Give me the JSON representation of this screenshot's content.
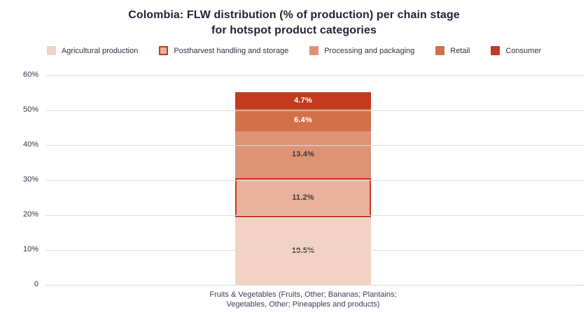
{
  "title": {
    "line1": "Colombia: FLW distribution (% of production) per chain stage",
    "line2": "for hotspot product categories"
  },
  "colors": {
    "agricultural_production": "#f2d2c4",
    "postharvest_fill": "#e9b19e",
    "postharvest_border": "#c53a1e",
    "processing_and_packaging": "#de9377",
    "retail": "#d1714a",
    "consumer": "#c33a20",
    "gridline": "#e0ded8",
    "title_text": "#1f2233",
    "tick_text": "#333447",
    "dark_value_label": "#3f3a36",
    "light_value_label": "#ffffff"
  },
  "chart_data": {
    "type": "bar",
    "stacked": true,
    "title": "Colombia: FLW distribution (% of production) per chain stage for hotspot product categories",
    "xlabel": "",
    "ylabel": "",
    "ylim": [
      0,
      60
    ],
    "grid": true,
    "legend_position": "top",
    "categories": [
      "Fruits & Vegetables (Fruits, Other; Bananas; Plantains; Vegetables, Other; Pineapples and products)"
    ],
    "category_label_lines": [
      "Fruits & Vegetables (Fruits, Other; Bananas; Plantains;",
      "Vegetables, Other; Pineapples and products)"
    ],
    "series": [
      {
        "name": "Agricultural production",
        "values": [
          19.5
        ],
        "display_label": "19.5%",
        "fill": "#f2d2c4",
        "border": null,
        "label_color": "#3f3a36"
      },
      {
        "name": "Postharvest handling and storage",
        "values": [
          11.2
        ],
        "display_label": "11.2%",
        "fill": "#e9b19e",
        "border": "#c53a1e",
        "label_color": "#3f3a36"
      },
      {
        "name": "Processing and packaging",
        "values": [
          13.4
        ],
        "display_label": "13.4%",
        "fill": "#de9377",
        "border": null,
        "label_color": "#3f3a36"
      },
      {
        "name": "Retail",
        "values": [
          6.4
        ],
        "display_label": "6.4%",
        "fill": "#d1714a",
        "border": null,
        "label_color": "#ffffff"
      },
      {
        "name": "Consumer",
        "values": [
          4.7
        ],
        "display_label": "4.7%",
        "fill": "#c33a20",
        "border": null,
        "label_color": "#ffffff"
      }
    ],
    "total_label": null,
    "yticks": [
      {
        "value": 60,
        "label": "60%"
      },
      {
        "value": 50,
        "label": "50%"
      },
      {
        "value": 40,
        "label": "40%"
      },
      {
        "value": 30,
        "label": "30%"
      },
      {
        "value": 20,
        "label": "20%"
      },
      {
        "value": 10,
        "label": "10%"
      },
      {
        "value": 0,
        "label": "0"
      }
    ]
  }
}
